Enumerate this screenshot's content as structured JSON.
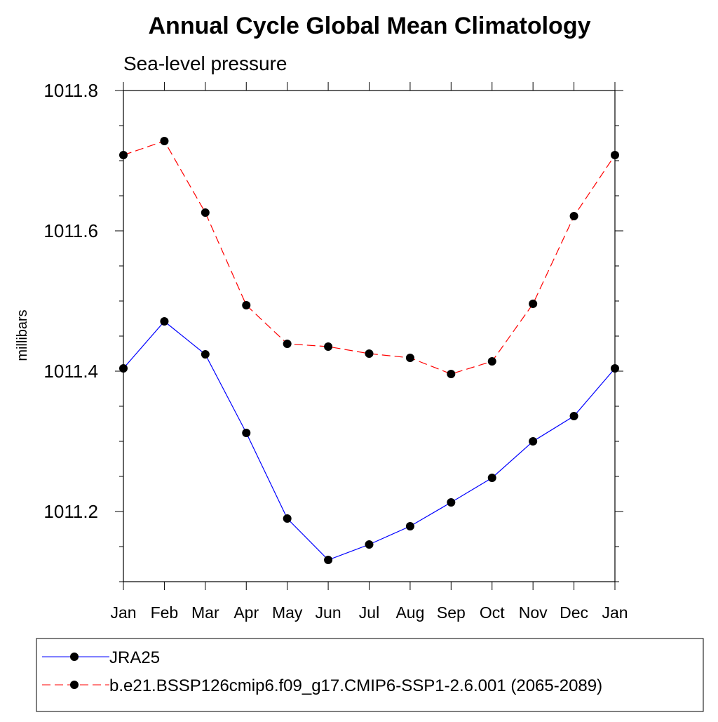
{
  "chart_data": {
    "type": "line",
    "title": "Annual Cycle Global Mean Climatology",
    "subtitle": "Sea-level pressure",
    "xlabel": "",
    "ylabel": "millibars",
    "categories": [
      "Jan",
      "Feb",
      "Mar",
      "Apr",
      "May",
      "Jun",
      "Jul",
      "Aug",
      "Sep",
      "Oct",
      "Nov",
      "Dec",
      "Jan"
    ],
    "ylim": [
      1011.1,
      1011.8
    ],
    "y_major_ticks": [
      1011.2,
      1011.4,
      1011.6,
      1011.8
    ],
    "y_tick_labels": [
      "1011.2",
      "1011.4",
      "1011.6",
      "1011.8"
    ],
    "y_minor_step": 0.05,
    "series": [
      {
        "name": "JRA25",
        "color": "#0000ff",
        "dash": "solid",
        "values": [
          1011.404,
          1011.471,
          1011.424,
          1011.312,
          1011.19,
          1011.131,
          1011.153,
          1011.179,
          1011.213,
          1011.248,
          1011.3,
          1011.336,
          1011.404
        ]
      },
      {
        "name": "b.e21.BSSP126cmip6.f09_g17.CMIP6-SSP1-2.6.001 (2065-2089)",
        "color": "#ff0000",
        "dash": "dashed",
        "values": [
          1011.708,
          1011.728,
          1011.626,
          1011.494,
          1011.439,
          1011.435,
          1011.425,
          1011.419,
          1011.396,
          1011.414,
          1011.496,
          1011.621,
          1011.708
        ]
      }
    ],
    "legend_position": "bottom"
  }
}
